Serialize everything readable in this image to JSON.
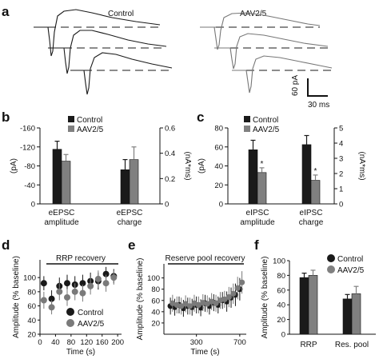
{
  "figure": {
    "panels": [
      "a",
      "b",
      "c",
      "d",
      "e",
      "f"
    ],
    "panel_a": {
      "groups": [
        "Control",
        "AAV2/5"
      ],
      "scale_bar": {
        "y": "60 pA",
        "x": "30 ms"
      },
      "colors": {
        "control_trace": "#1a1a1a",
        "aav_trace": "#777777"
      }
    }
  },
  "chart_data": [
    {
      "id": "b",
      "type": "bar",
      "categories": [
        "eEPSC amplitude",
        "eEPSC charge"
      ],
      "category_lines": [
        [
          "eEPSC",
          "amplitude"
        ],
        [
          "eEPSC",
          "charge"
        ]
      ],
      "legend": [
        "Control",
        "AAV2/5"
      ],
      "colors": {
        "Control": "#1a1a1a",
        "AAV2/5": "#808080"
      },
      "left_axis": {
        "ylabel": "(pA)",
        "ylim": [
          0,
          -160
        ],
        "ticks": [
          "-160",
          "-120",
          "-80",
          "-40",
          "0"
        ],
        "tick_values": [
          -160,
          -120,
          -80,
          -40,
          0
        ]
      },
      "right_axis": {
        "ylabel": "(nA*ms)",
        "ylim": [
          0,
          0.6
        ],
        "ticks": [
          "0.6",
          "0.4",
          "0.2",
          "0"
        ],
        "tick_values": [
          0.6,
          0.4,
          0.2,
          0
        ]
      },
      "series": [
        {
          "name": "Control",
          "values": [
            -115,
            0.27
          ],
          "errors": [
            17,
            0.08
          ],
          "axis": [
            "left",
            "right"
          ]
        },
        {
          "name": "AAV2/5",
          "values": [
            -90,
            0.35
          ],
          "errors": [
            14,
            0.1
          ],
          "axis": [
            "left",
            "right"
          ]
        }
      ]
    },
    {
      "id": "c",
      "type": "bar",
      "categories": [
        "eIPSC amplitude",
        "eIPSC charge"
      ],
      "category_lines": [
        [
          "eIPSC",
          "amplitude"
        ],
        [
          "eIPSC",
          "charge"
        ]
      ],
      "legend": [
        "Control",
        "AAV2/5"
      ],
      "colors": {
        "Control": "#1a1a1a",
        "AAV2/5": "#808080"
      },
      "left_axis": {
        "ylabel": "(pA)",
        "ylim": [
          0,
          80
        ],
        "ticks": [
          "80",
          "60",
          "40",
          "20",
          "0"
        ],
        "tick_values": [
          80,
          60,
          40,
          20,
          0
        ]
      },
      "right_axis": {
        "ylabel": "(nA*ms)",
        "ylim": [
          0,
          5
        ],
        "ticks": [
          "5",
          "4",
          "3",
          "2",
          "1",
          "0"
        ],
        "tick_values": [
          5,
          4,
          3,
          2,
          1,
          0
        ]
      },
      "series": [
        {
          "name": "Control",
          "values": [
            57,
            3.9
          ],
          "errors": [
            10,
            0.6
          ],
          "axis": [
            "left",
            "right"
          ]
        },
        {
          "name": "AAV2/5",
          "values": [
            33,
            1.55
          ],
          "errors": [
            5,
            0.35
          ],
          "axis": [
            "left",
            "right"
          ]
        }
      ],
      "annotations": [
        "*",
        "*"
      ]
    },
    {
      "id": "d",
      "type": "scatter",
      "title": "RRP recovery",
      "xlabel": "Time (s)",
      "ylabel": "Amplitude (% baseline)",
      "xlim": [
        0,
        210
      ],
      "ylim": [
        20,
        125
      ],
      "xticks": [
        "0",
        "40",
        "80",
        "120",
        "160",
        "200"
      ],
      "xtick_values": [
        0,
        40,
        80,
        120,
        160,
        200
      ],
      "yticks": [
        "20",
        "40",
        "60",
        "80",
        "100"
      ],
      "ytick_values": [
        20,
        40,
        60,
        80,
        100
      ],
      "series": [
        {
          "name": "Control",
          "color": "#1a1a1a",
          "x": [
            10,
            30,
            50,
            70,
            90,
            110,
            130,
            150,
            170,
            190
          ],
          "y": [
            92,
            70,
            88,
            92,
            90,
            92,
            95,
            95,
            105,
            102
          ],
          "err": [
            10,
            12,
            12,
            12,
            12,
            12,
            12,
            12,
            10,
            10
          ]
        },
        {
          "name": "AAV2/5",
          "color": "#7a7a7a",
          "x": [
            10,
            30,
            50,
            70,
            90,
            110,
            130,
            150,
            170,
            190
          ],
          "y": [
            68,
            58,
            80,
            72,
            80,
            78,
            88,
            98,
            92,
            100
          ],
          "err": [
            12,
            10,
            12,
            12,
            12,
            12,
            12,
            12,
            12,
            10
          ]
        }
      ]
    },
    {
      "id": "e",
      "type": "scatter",
      "title": "Reserve pool recovery",
      "xlabel": "Time (s)",
      "ylabel": "Amplitude (% baseline)",
      "xlim": [
        0,
        760
      ],
      "ylim": [
        0,
        125
      ],
      "xticks": [
        "300",
        "700"
      ],
      "xtick_values": [
        300,
        700
      ],
      "yticks": [
        "20",
        "40",
        "60",
        "80",
        "100"
      ],
      "ytick_values": [
        20,
        40,
        60,
        80,
        100
      ],
      "series": [
        {
          "name": "Control",
          "color": "#1a1a1a",
          "x": [
            60,
            100,
            140,
            180,
            220,
            260,
            300,
            340,
            380,
            420,
            460,
            500,
            540,
            580,
            620,
            660,
            700
          ],
          "y": [
            50,
            48,
            52,
            46,
            50,
            48,
            52,
            47,
            55,
            50,
            56,
            52,
            60,
            58,
            65,
            70,
            80
          ],
          "err": [
            15,
            15,
            15,
            15,
            15,
            15,
            15,
            15,
            15,
            15,
            15,
            15,
            15,
            18,
            18,
            20,
            20
          ]
        },
        {
          "name": "AAV2/5",
          "color": "#7a7a7a",
          "x": [
            80,
            120,
            160,
            200,
            240,
            280,
            320,
            360,
            400,
            440,
            480,
            520,
            560,
            600,
            640,
            680,
            720
          ],
          "y": [
            55,
            52,
            50,
            54,
            50,
            55,
            52,
            56,
            54,
            58,
            55,
            60,
            62,
            66,
            72,
            82,
            92
          ],
          "err": [
            15,
            15,
            15,
            15,
            15,
            15,
            15,
            15,
            15,
            15,
            15,
            15,
            15,
            18,
            18,
            20,
            20
          ]
        }
      ]
    },
    {
      "id": "f",
      "type": "bar",
      "categories": [
        "RRP",
        "Res. pool"
      ],
      "legend": [
        "Control",
        "AAV2/5"
      ],
      "colors": {
        "Control": "#1a1a1a",
        "AAV2/5": "#808080"
      },
      "ylabel": "Amplitude (% baseline)",
      "ylim": [
        0,
        100
      ],
      "yticks": [
        "0",
        "20",
        "40",
        "60",
        "80",
        "100"
      ],
      "ytick_values": [
        0,
        20,
        40,
        60,
        80,
        100
      ],
      "series": [
        {
          "name": "Control",
          "values": [
            77,
            48
          ],
          "errors": [
            6,
            6
          ]
        },
        {
          "name": "AAV2/5",
          "values": [
            80,
            55
          ],
          "errors": [
            7,
            10
          ]
        }
      ]
    }
  ]
}
